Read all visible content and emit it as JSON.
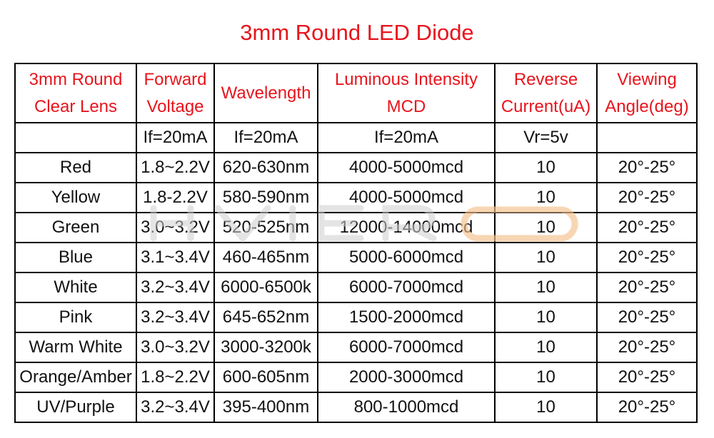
{
  "title": "3mm Round LED Diode",
  "watermark": "HVIERO",
  "headers": [
    [
      "3mm Round",
      "Clear Lens"
    ],
    [
      "Forward",
      "Voltage"
    ],
    [
      "Wavelength"
    ],
    [
      "Luminous Intensity",
      "MCD"
    ],
    [
      "Reverse",
      "Current(uA)"
    ],
    [
      "Viewing",
      "Angle(deg)"
    ]
  ],
  "conditions": [
    "",
    "If=20mA",
    "If=20mA",
    "If=20mA",
    "Vr=5v",
    ""
  ],
  "rows": [
    [
      "Red",
      "1.8~2.2V",
      "620-630nm",
      "4000-5000mcd",
      "10",
      "20°-25°"
    ],
    [
      "Yellow",
      "1.8-2.2V",
      "580-590nm",
      "4000-5000mcd",
      "10",
      "20°-25°"
    ],
    [
      "Green",
      "3.0~3.2V",
      "520-525nm",
      "12000-14000mcd",
      "10",
      "20°-25°"
    ],
    [
      "Blue",
      "3.1~3.4V",
      "460-465nm",
      "5000-6000mcd",
      "10",
      "20°-25°"
    ],
    [
      "White",
      "3.2~3.4V",
      "6000-6500k",
      "6000-7000mcd",
      "10",
      "20°-25°"
    ],
    [
      "Pink",
      "3.2~3.4V",
      "645-652nm",
      "1500-2000mcd",
      "10",
      "20°-25°"
    ],
    [
      "Warm White",
      "3.0~3.2V",
      "3000-3200k",
      "6000-7000mcd",
      "10",
      "20°-25°"
    ],
    [
      "Orange/Amber",
      "1.8~2.2V",
      "600-605nm",
      "2000-3000mcd",
      "10",
      "20°-25°"
    ],
    [
      "UV/Purple",
      "3.2~3.4V",
      "395-400nm",
      "800-1000mcd",
      "10",
      "20°-25°"
    ]
  ],
  "colors": {
    "title": "#e8141c",
    "header": "#e8141c",
    "watermark_gray": "#cfcfcf",
    "watermark_orange": "#f4c08a"
  }
}
